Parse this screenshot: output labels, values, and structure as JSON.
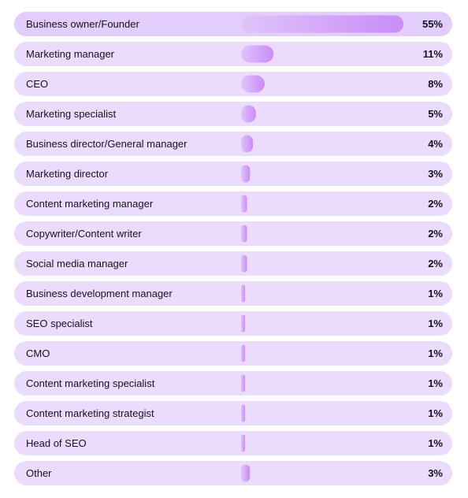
{
  "chart_data": {
    "type": "bar",
    "orientation": "horizontal",
    "categories": [
      "Business owner/Founder",
      "Marketing manager",
      "CEO",
      "Marketing specialist",
      "Business director/General manager",
      "Marketing director",
      "Content marketing manager",
      "Copywriter/Content writer",
      "Social media manager",
      "Business development manager",
      "SEO specialist",
      "CMO",
      "Content marketing specialist",
      "Content marketing strategist",
      "Head of SEO",
      "Other"
    ],
    "values": [
      55,
      11,
      8,
      5,
      4,
      3,
      2,
      2,
      2,
      1,
      1,
      1,
      1,
      1,
      1,
      3
    ],
    "value_labels": [
      "55%",
      "11%",
      "8%",
      "5%",
      "4%",
      "3%",
      "2%",
      "2%",
      "2%",
      "1%",
      "1%",
      "1%",
      "1%",
      "1%",
      "1%",
      "3%"
    ],
    "unit": "%",
    "xlim": [
      0,
      55
    ],
    "grid": false,
    "colors": {
      "row_background": "#ebdcfd",
      "row_background_highlight": "#e3cdfc",
      "bar_start": "#e0c4fb",
      "bar_end": "#c98cf6",
      "text": "#14121f"
    }
  }
}
